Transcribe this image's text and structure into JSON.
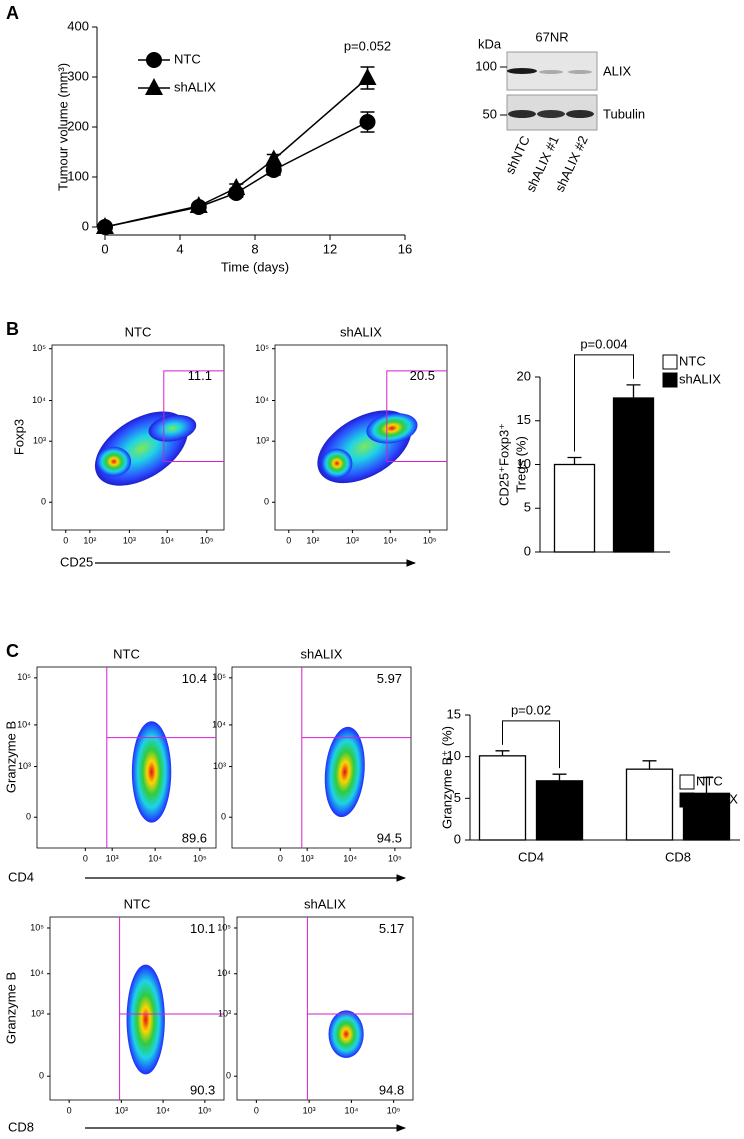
{
  "panel_labels": [
    "A",
    "B",
    "C"
  ],
  "chart_data": [
    {
      "type": "line",
      "xlabel": "Time (days)",
      "ylabel": "Tumour volume (mm³)",
      "annotation": "p=0.052",
      "x": [
        0,
        5,
        7,
        9,
        14
      ],
      "series": [
        {
          "name": "NTC",
          "marker": "circle",
          "color": "#000000",
          "values": [
            0,
            40,
            68,
            114,
            210
          ],
          "errors": [
            0,
            6,
            8,
            10,
            20
          ]
        },
        {
          "name": "shALIX",
          "marker": "triangle",
          "color": "#000000",
          "values": [
            0,
            42,
            78,
            135,
            298
          ],
          "errors": [
            0,
            5,
            8,
            10,
            22
          ]
        }
      ],
      "xlim": [
        0,
        16
      ],
      "ylim": [
        0,
        400
      ],
      "xticks": [
        0,
        4,
        8,
        12,
        16
      ],
      "yticks": [
        0,
        100,
        200,
        300,
        400
      ]
    },
    {
      "type": "bar",
      "ylabel": [
        "CD25⁺Foxp3⁺",
        "Tregs (%)"
      ],
      "annotation": "p=0.004",
      "categories": [
        null
      ],
      "series": [
        {
          "name": "NTC",
          "color": "#ffffff",
          "values": [
            10
          ],
          "errors": [
            0.8
          ]
        },
        {
          "name": "shALIX",
          "color": "#000000",
          "values": [
            17.6
          ],
          "errors": [
            1.5
          ]
        }
      ],
      "ylim": [
        0,
        20
      ],
      "yticks": [
        0,
        5,
        10,
        15,
        20
      ]
    },
    {
      "type": "bar",
      "ylabel": "Granzyme B⁺ (%)",
      "annotation": "p=0.02",
      "categories": [
        "CD4",
        "CD8"
      ],
      "series": [
        {
          "name": "NTC",
          "color": "#ffffff",
          "values": [
            10.1,
            8.5
          ],
          "errors": [
            0.6,
            1
          ]
        },
        {
          "name": "shALIX",
          "color": "#000000",
          "values": [
            7.1,
            5.6
          ],
          "errors": [
            0.8,
            1.9
          ]
        }
      ],
      "ylim": [
        0,
        15
      ],
      "yticks": [
        0,
        5,
        10,
        15
      ]
    }
  ],
  "blot": {
    "kda_label": "kDa",
    "cell_line": "67NR",
    "markers": [
      100,
      50
    ],
    "proteins": [
      "ALIX",
      "Tubulin"
    ],
    "lanes": [
      "shNTC",
      "shALIX #1",
      "shALIX #2"
    ]
  },
  "flow_panels": [
    {
      "xlabel": "CD25",
      "ylabel": "Foxp3",
      "xticks": [
        "0",
        "10²",
        "10³",
        "10⁴",
        "10⁵"
      ],
      "yticks": [
        "10⁵",
        "10⁴",
        "10³",
        "0"
      ],
      "plots": [
        {
          "title": "NTC",
          "gates": [
            11.1
          ]
        },
        {
          "title": "shALIX",
          "gates": [
            20.5
          ]
        }
      ]
    },
    {
      "xlabel": "CD4",
      "ylabel": "Granzyme B",
      "xticks": [
        "0",
        "10³",
        "10⁴",
        "10⁵"
      ],
      "yticks": [
        "10⁵",
        "10⁴",
        "10³",
        "0"
      ],
      "plots": [
        {
          "title": "NTC",
          "gates": [
            10.4,
            89.6
          ]
        },
        {
          "title": "shALIX",
          "gates": [
            5.97,
            94.5
          ]
        }
      ]
    },
    {
      "xlabel": "CD8",
      "ylabel": "Granzyme B",
      "xticks": [
        "0",
        "10³",
        "10⁴",
        "10⁵"
      ],
      "yticks": [
        "10⁵",
        "10⁴",
        "10³",
        "0"
      ],
      "plots": [
        {
          "title": "NTC",
          "gates": [
            10.1,
            90.3
          ]
        },
        {
          "title": "shALIX",
          "gates": [
            5.17,
            94.8
          ]
        }
      ]
    }
  ]
}
